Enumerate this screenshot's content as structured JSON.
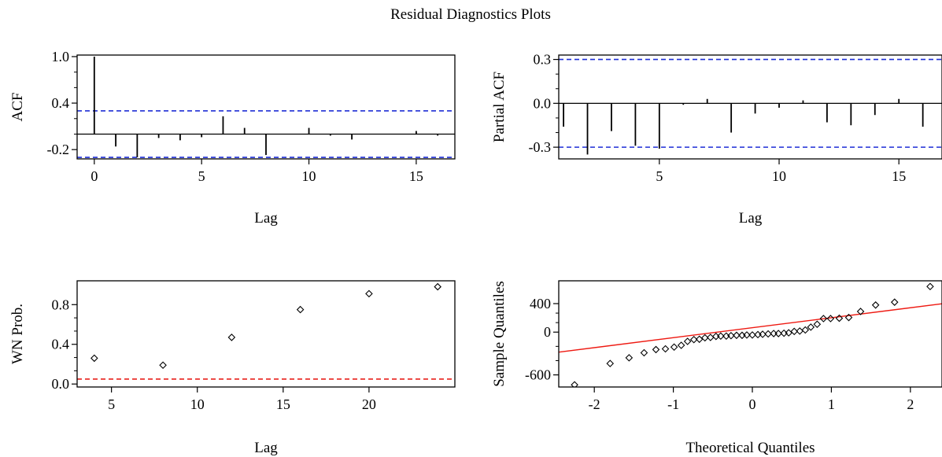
{
  "figure_title": "Residual Diagnostics Plots",
  "colors": {
    "confidence_band": "#1f2fd6",
    "wn_threshold": "#e8221c",
    "qq_line": "#ee1a12",
    "ink": "#000000"
  },
  "chart_data": [
    {
      "id": "acf",
      "type": "bar",
      "style": "stem",
      "xlabel": "Lag",
      "ylabel": "ACF",
      "xlim": [
        -0.8,
        16.8
      ],
      "ylim": [
        -0.32,
        1.02
      ],
      "xticks": [
        0,
        5,
        10,
        15
      ],
      "yticks": [
        -0.2,
        0.4,
        1.0
      ],
      "ytick_labels": [
        "-0.2",
        "0.4",
        "1.0"
      ],
      "x": [
        0,
        1,
        2,
        3,
        4,
        5,
        6,
        7,
        8,
        9,
        10,
        11,
        12,
        13,
        14,
        15,
        16
      ],
      "values": [
        1.0,
        -0.16,
        -0.3,
        -0.05,
        -0.08,
        -0.04,
        0.23,
        0.08,
        -0.27,
        0.0,
        0.08,
        -0.02,
        -0.07,
        0.0,
        0.0,
        0.04,
        -0.02
      ],
      "confidence_band": [
        -0.3,
        0.3
      ],
      "zero_line": true
    },
    {
      "id": "pacf",
      "type": "bar",
      "style": "stem",
      "xlabel": "Lag",
      "ylabel": "Partial ACF",
      "xlim": [
        0.8,
        16.8
      ],
      "ylim": [
        -0.38,
        0.33
      ],
      "xticks": [
        5,
        10,
        15
      ],
      "yticks": [
        -0.3,
        0.0,
        0.3
      ],
      "ytick_labels": [
        "-0.3",
        "0.0",
        "0.3"
      ],
      "x": [
        1,
        2,
        3,
        4,
        5,
        6,
        7,
        8,
        9,
        10,
        11,
        12,
        13,
        14,
        15,
        16
      ],
      "values": [
        -0.16,
        -0.35,
        -0.19,
        -0.29,
        -0.31,
        -0.01,
        0.03,
        -0.2,
        -0.07,
        -0.03,
        0.02,
        -0.13,
        -0.15,
        -0.08,
        0.03,
        -0.16
      ],
      "confidence_band": [
        -0.3,
        0.3
      ],
      "zero_line": true
    },
    {
      "id": "wn",
      "type": "scatter",
      "marker": "diamond",
      "xlabel": "Lag",
      "ylabel": "WN Prob.",
      "xlim": [
        3,
        25
      ],
      "ylim": [
        -0.03,
        1.04
      ],
      "xticks": [
        5,
        10,
        15,
        20
      ],
      "yticks": [
        0.0,
        0.4,
        0.8
      ],
      "ytick_labels": [
        "0.0",
        "0.4",
        "0.8"
      ],
      "x": [
        4,
        8,
        12,
        16,
        20,
        24
      ],
      "values": [
        0.26,
        0.19,
        0.47,
        0.75,
        0.91,
        0.98
      ],
      "threshold": 0.05
    },
    {
      "id": "qq",
      "type": "scatter",
      "marker": "diamond",
      "xlabel": "Theoretical Quantiles",
      "ylabel": "Sample Quantiles",
      "xlim": [
        -2.45,
        2.4
      ],
      "ylim": [
        -770,
        720
      ],
      "xticks": [
        -2,
        -1,
        0,
        1,
        2
      ],
      "yticks": [
        -600,
        0,
        400
      ],
      "ytick_labels": [
        "-600",
        "0",
        "400"
      ],
      "x": [
        -2.25,
        -1.8,
        -1.56,
        -1.37,
        -1.22,
        -1.1,
        -0.99,
        -0.9,
        -0.82,
        -0.74,
        -0.67,
        -0.6,
        -0.53,
        -0.46,
        -0.4,
        -0.33,
        -0.27,
        -0.2,
        -0.13,
        -0.07,
        0.0,
        0.07,
        0.13,
        0.2,
        0.27,
        0.33,
        0.4,
        0.46,
        0.53,
        0.6,
        0.67,
        0.74,
        0.82,
        0.9,
        0.99,
        1.1,
        1.22,
        1.37,
        1.56,
        1.8,
        2.25
      ],
      "values": [
        -740,
        -440,
        -360,
        -290,
        -245,
        -235,
        -210,
        -185,
        -130,
        -105,
        -100,
        -80,
        -75,
        -60,
        -55,
        -55,
        -50,
        -45,
        -45,
        -40,
        -40,
        -35,
        -30,
        -25,
        -20,
        -20,
        -15,
        -10,
        10,
        15,
        30,
        70,
        110,
        190,
        190,
        195,
        205,
        290,
        380,
        420,
        640
      ],
      "reference_line": {
        "intercept": 62,
        "slope": 140
      }
    }
  ]
}
